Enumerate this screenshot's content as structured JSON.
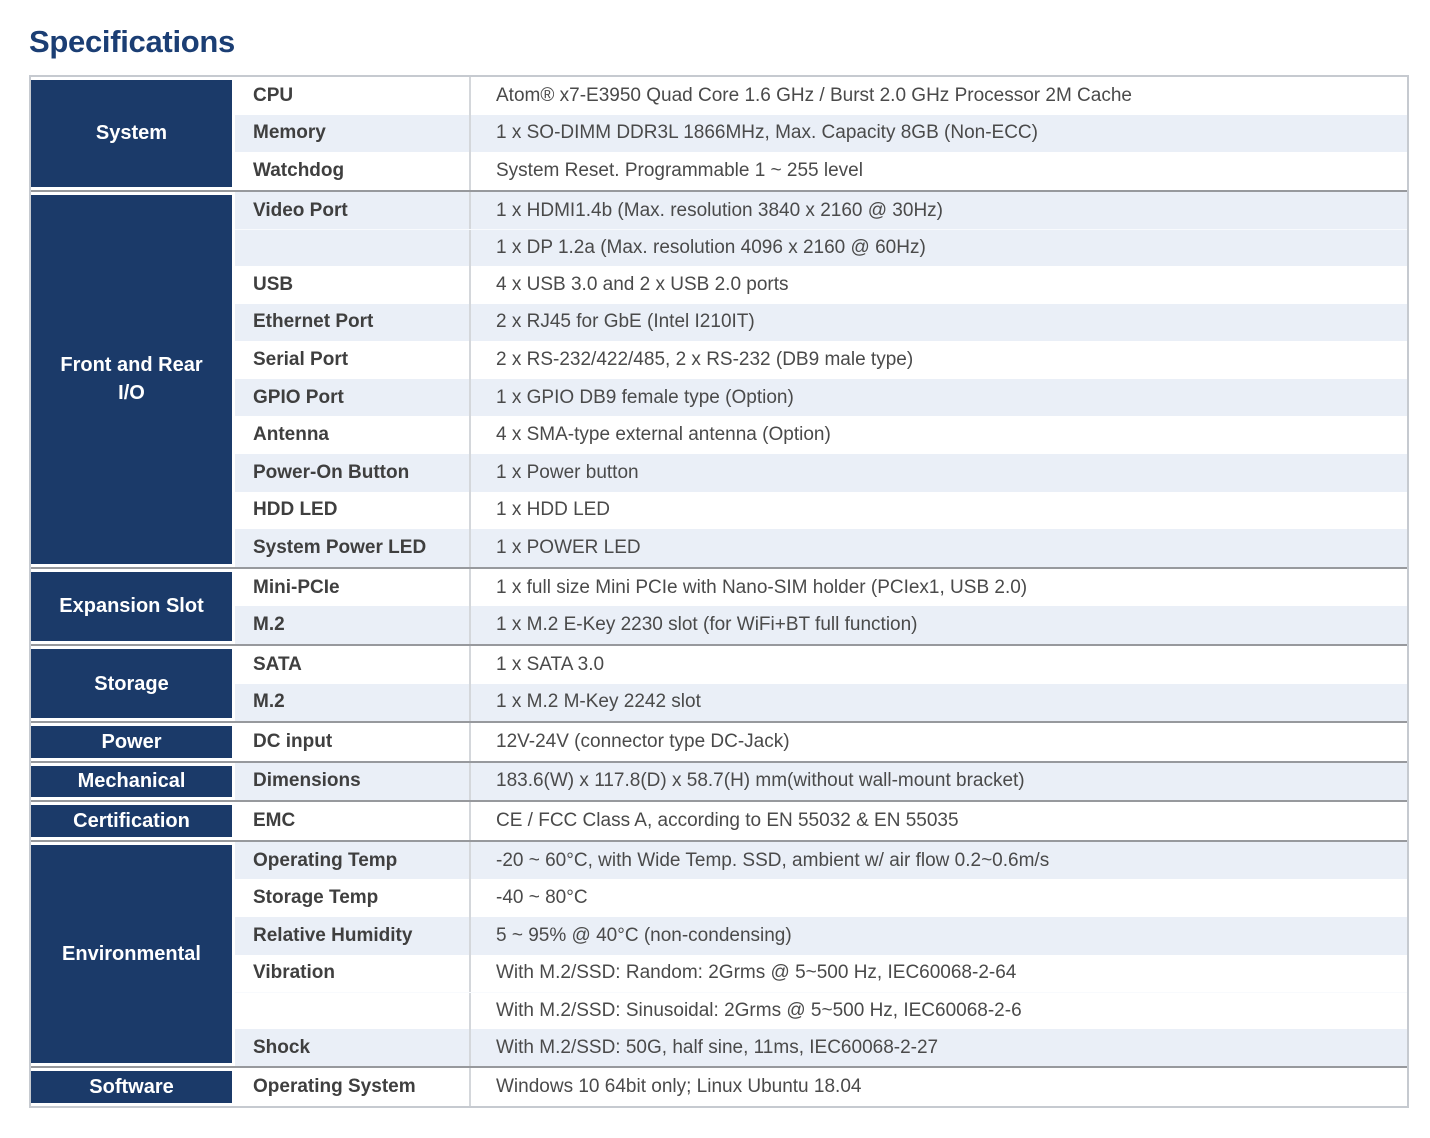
{
  "page": {
    "title": "Specifications"
  },
  "colors": {
    "category_navy": "#1b3a69",
    "title_blue": "#1b3e74",
    "row_stripe_blue": "#eaeff7",
    "section_divider_gray": "#97999d"
  },
  "table": {
    "sections": [
      {
        "category": "System",
        "rows": [
          {
            "label": "CPU",
            "value": "Atom® x7-E3950 Quad Core 1.6 GHz / Burst 2.0 GHz Processor 2M Cache"
          },
          {
            "label": "Memory",
            "value": "1 x SO-DIMM DDR3L 1866MHz, Max. Capacity 8GB (Non-ECC)"
          },
          {
            "label": "Watchdog",
            "value": "System Reset. Programmable 1 ~ 255 level"
          }
        ]
      },
      {
        "category": "Front and Rear I/O",
        "rows": [
          {
            "label": "Video Port",
            "value": "1 x HDMI1.4b (Max. resolution 3840 x 2160 @ 30Hz)"
          },
          {
            "label": "",
            "value": "1 x DP 1.2a (Max. resolution 4096 x 2160 @ 60Hz)"
          },
          {
            "label": "USB",
            "value": "4 x USB 3.0 and 2 x USB 2.0 ports"
          },
          {
            "label": "Ethernet Port",
            "value": "2 x RJ45 for GbE (Intel I210IT)"
          },
          {
            "label": "Serial Port",
            "value": "2 x RS-232/422/485, 2 x RS-232 (DB9 male type)"
          },
          {
            "label": "GPIO Port",
            "value": "1 x GPIO DB9 female type (Option)"
          },
          {
            "label": "Antenna",
            "value": "4 x SMA-type external antenna (Option)"
          },
          {
            "label": "Power-On Button",
            "value": "1 x Power button"
          },
          {
            "label": "HDD LED",
            "value": "1 x HDD LED"
          },
          {
            "label": "System Power LED",
            "value": "1 x POWER LED"
          }
        ]
      },
      {
        "category": "Expansion Slot",
        "rows": [
          {
            "label": "Mini-PCIe",
            "value": "1 x full size Mini PCIe with Nano-SIM holder (PCIex1, USB 2.0)"
          },
          {
            "label": "M.2",
            "value": "1 x M.2 E-Key 2230 slot (for WiFi+BT full function)"
          }
        ]
      },
      {
        "category": "Storage",
        "rows": [
          {
            "label": "SATA",
            "value": "1 x SATA 3.0"
          },
          {
            "label": "M.2",
            "value": "1 x M.2 M-Key 2242 slot"
          }
        ]
      },
      {
        "category": "Power",
        "rows": [
          {
            "label": "DC input",
            "value": "12V-24V (connector type DC-Jack)"
          }
        ]
      },
      {
        "category": "Mechanical",
        "rows": [
          {
            "label": "Dimensions",
            "value": "183.6(W) x 117.8(D) x 58.7(H) mm(without wall-mount bracket)"
          }
        ]
      },
      {
        "category": "Certification",
        "rows": [
          {
            "label": "EMC",
            "value": "CE / FCC Class A, according to EN 55032 & EN 55035"
          }
        ]
      },
      {
        "category": "Environmental",
        "rows": [
          {
            "label": "Operating Temp",
            "value": "-20 ~ 60°C, with Wide Temp. SSD, ambient w/ air flow 0.2~0.6m/s"
          },
          {
            "label": "Storage Temp",
            "value": "-40 ~ 80°C"
          },
          {
            "label": "Relative Humidity",
            "value": "5 ~ 95% @ 40°C (non-condensing)"
          },
          {
            "label": "Vibration",
            "value": "With M.2/SSD: Random: 2Grms @ 5~500 Hz, IEC60068-2-64"
          },
          {
            "label": "",
            "value": "With M.2/SSD: Sinusoidal: 2Grms @ 5~500 Hz, IEC60068-2-6"
          },
          {
            "label": "Shock",
            "value": "With M.2/SSD: 50G, half sine, 11ms, IEC60068-2-27"
          }
        ]
      },
      {
        "category": "Software",
        "rows": [
          {
            "label": "Operating System",
            "value": "Windows 10 64bit only; Linux Ubuntu 18.04"
          }
        ]
      }
    ]
  }
}
